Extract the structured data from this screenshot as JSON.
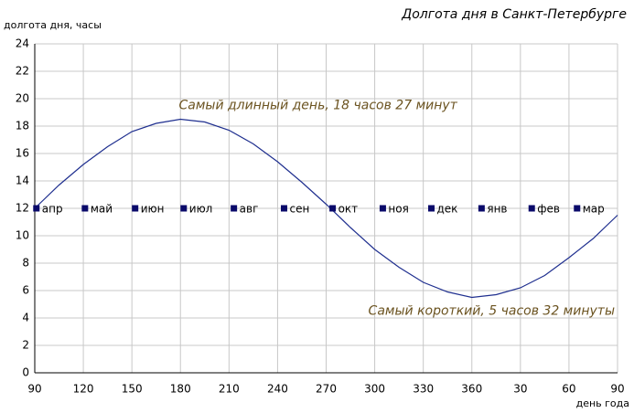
{
  "chart_data": {
    "type": "line",
    "title": "Долгота дня в Санкт-Петербурге",
    "y_label": "долгота дня, часы",
    "x_label": "день года",
    "x": [
      90,
      105,
      120,
      135,
      150,
      165,
      180,
      195,
      210,
      225,
      240,
      255,
      270,
      285,
      300,
      315,
      330,
      345,
      360,
      375,
      390,
      405,
      420,
      435,
      450
    ],
    "values": [
      12.0,
      13.7,
      15.2,
      16.5,
      17.6,
      18.2,
      18.5,
      18.3,
      17.7,
      16.7,
      15.4,
      13.9,
      12.3,
      10.6,
      9.0,
      7.7,
      6.6,
      5.9,
      5.5,
      5.7,
      6.2,
      7.1,
      8.4,
      9.8,
      11.5
    ],
    "color": "#1f2f8f",
    "markers": {
      "labels": [
        "апр",
        "май",
        "июн",
        "июл",
        "авг",
        "сен",
        "окт",
        "ноя",
        "дек",
        "янв",
        "фев",
        "мар"
      ],
      "x": [
        91,
        121,
        152,
        182,
        213,
        244,
        274,
        305,
        335,
        366,
        397,
        425
      ],
      "values": [
        12,
        12,
        12,
        12,
        12,
        12,
        12,
        12,
        12,
        12,
        12,
        12
      ],
      "color": "#0a0a6a"
    },
    "annotations": [
      {
        "text": "Самый длинный день, 18 часов 27 минут",
        "x": 265,
        "y": 19.5
      },
      {
        "text": "Самый короткий, 5 часов 32 минуты",
        "x": 450,
        "y": 4.5
      }
    ],
    "xlim": [
      90,
      450
    ],
    "xticks": [
      90,
      120,
      150,
      180,
      210,
      240,
      270,
      300,
      330,
      360,
      {
        "value": 390,
        "label": "30"
      },
      {
        "value": 420,
        "label": "60"
      },
      {
        "value": 450,
        "label": "90"
      }
    ],
    "ylim": [
      0,
      24
    ],
    "yticks": [
      0,
      2,
      4,
      6,
      8,
      10,
      12,
      14,
      16,
      18,
      20,
      22,
      24
    ],
    "grid": true
  }
}
